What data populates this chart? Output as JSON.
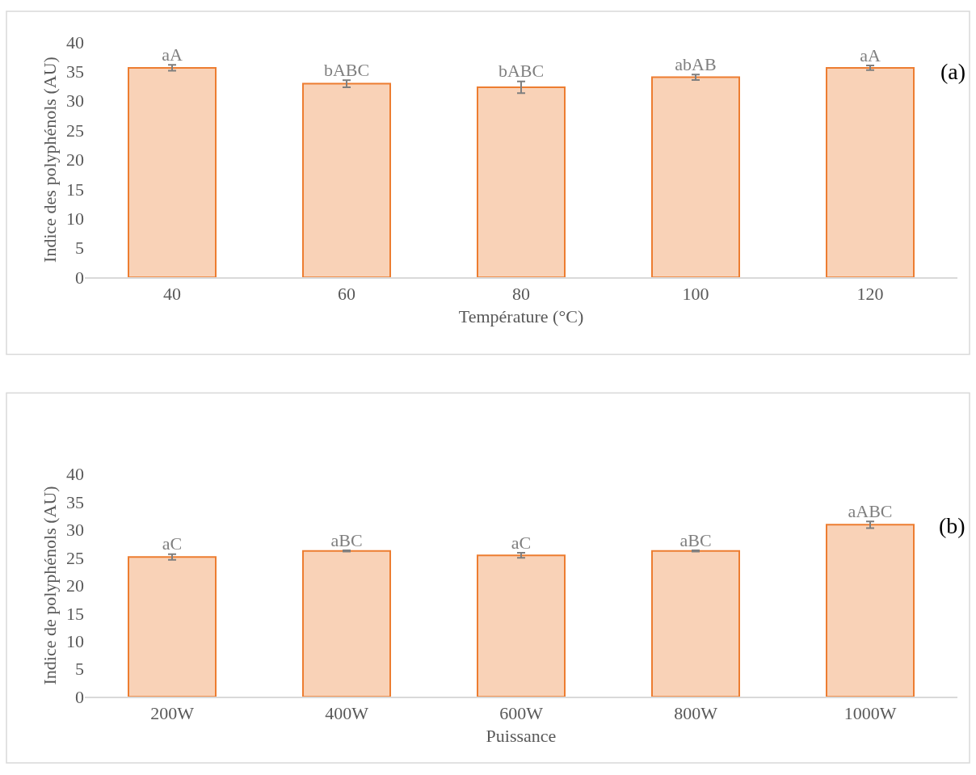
{
  "chart_data": [
    {
      "type": "bar",
      "xlabel": "Température (°C)",
      "ylabel": "Indice des polyphénols (AU)",
      "categories": [
        "40",
        "60",
        "80",
        "100",
        "120"
      ],
      "values": [
        35.6,
        32.9,
        32.3,
        34.0,
        35.6
      ],
      "errors": [
        0.5,
        0.6,
        1.0,
        0.45,
        0.4
      ],
      "value_labels": [
        "aA",
        "bABC",
        "bABC",
        "abAB",
        "aA"
      ],
      "color": "#ed7d31",
      "ylim": [
        0,
        40
      ],
      "yticks": [
        0,
        5,
        10,
        15,
        20,
        25,
        30,
        35,
        40
      ],
      "grid": false,
      "annotations": [
        "(a)"
      ]
    },
    {
      "type": "bar",
      "xlabel": "Puissance",
      "ylabel": "Indice de polyphénols (AU)",
      "categories": [
        "200W",
        "400W",
        "600W",
        "800W",
        "1000W"
      ],
      "values": [
        25.1,
        26.2,
        25.4,
        26.2,
        30.9
      ],
      "errors": [
        0.5,
        0.1,
        0.45,
        0.1,
        0.6
      ],
      "value_labels": [
        "aC",
        "aBC",
        "aC",
        "aBC",
        "aABC"
      ],
      "color": "#ed7d31",
      "ylim": [
        0,
        40
      ],
      "yticks": [
        0,
        5,
        10,
        15,
        20,
        25,
        30,
        35,
        40
      ],
      "grid": false,
      "annotations": [
        "(b)"
      ]
    }
  ]
}
